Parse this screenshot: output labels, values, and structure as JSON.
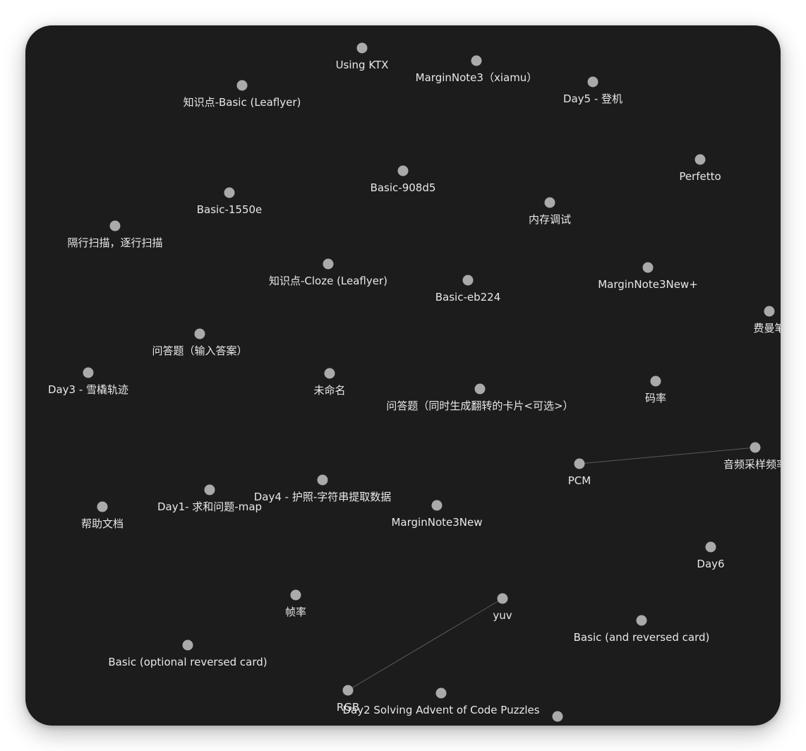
{
  "graph": {
    "colors": {
      "background": "#1c1c1c",
      "node": "#aaaaaa",
      "label": "#e8e8e8",
      "edge": "#5a5a5a"
    },
    "nodes": [
      {
        "id": "n1",
        "label": "Using KTX"
      },
      {
        "id": "n2",
        "label": "MarginNote3（xiamu）"
      },
      {
        "id": "n3",
        "label": "知识点-Basic (Leaflyer)"
      },
      {
        "id": "n4",
        "label": "Day5 - 登机"
      },
      {
        "id": "n5",
        "label": "Perfetto"
      },
      {
        "id": "n6",
        "label": "Basic-908d5"
      },
      {
        "id": "n7",
        "label": "Basic-1550e"
      },
      {
        "id": "n8",
        "label": "内存调试"
      },
      {
        "id": "n9",
        "label": "隔行扫描，逐行扫描"
      },
      {
        "id": "n10",
        "label": "知识点-Cloze (Leaflyer)"
      },
      {
        "id": "n11",
        "label": "Basic-eb224"
      },
      {
        "id": "n12",
        "label": "MarginNote3New+"
      },
      {
        "id": "n13",
        "label": "费曼笔"
      },
      {
        "id": "n14",
        "label": "问答题（输入答案）"
      },
      {
        "id": "n15",
        "label": "Day3 -  雪橇轨迹"
      },
      {
        "id": "n16",
        "label": "未命名"
      },
      {
        "id": "n17",
        "label": "问答题（同时生成翻转的卡片<可选>）"
      },
      {
        "id": "n18",
        "label": "码率"
      },
      {
        "id": "n19",
        "label": "音频采样频率"
      },
      {
        "id": "n20",
        "label": "PCM"
      },
      {
        "id": "n21",
        "label": "Day4 - 护照-字符串提取数据"
      },
      {
        "id": "n22",
        "label": "Day1- 求和问题-map"
      },
      {
        "id": "n23",
        "label": "帮助文档"
      },
      {
        "id": "n24",
        "label": "MarginNote3New"
      },
      {
        "id": "n25",
        "label": "Day6"
      },
      {
        "id": "n26",
        "label": "帧率"
      },
      {
        "id": "n27",
        "label": "yuv"
      },
      {
        "id": "n28",
        "label": "Basic (and reversed card)"
      },
      {
        "id": "n29",
        "label": "Basic (optional reversed card)"
      },
      {
        "id": "n30",
        "label": "RGB"
      },
      {
        "id": "n31",
        "label": "Day2  Solving Advent of Code Puzzles"
      },
      {
        "id": "n32",
        "label": ""
      }
    ],
    "edges": [
      {
        "from": "n20",
        "to": "n19"
      },
      {
        "from": "n30",
        "to": "n27"
      }
    ]
  }
}
